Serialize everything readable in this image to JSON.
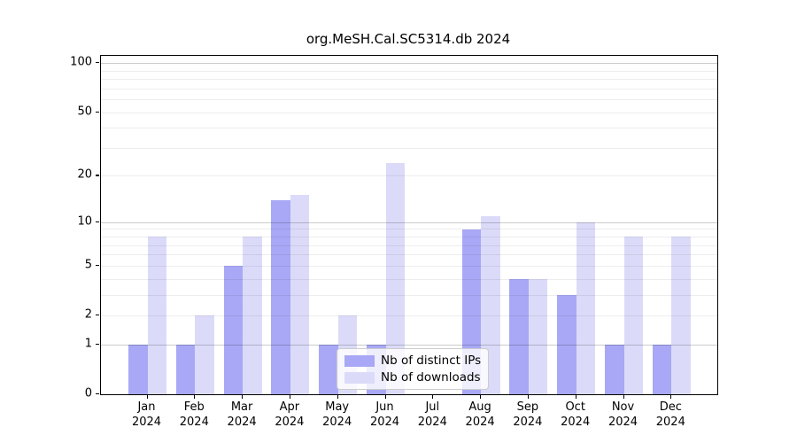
{
  "chart_data": {
    "type": "bar",
    "title": "org.MeSH.Cal.SC5314.db 2024",
    "categories": [
      "Jan",
      "Feb",
      "Mar",
      "Apr",
      "May",
      "Jun",
      "Jul",
      "Aug",
      "Sep",
      "Oct",
      "Nov",
      "Dec"
    ],
    "category_year": "2024",
    "series": [
      {
        "name": "Nb of distinct IPs",
        "color": "#a8a8f6",
        "values": [
          1,
          1,
          5,
          14,
          1,
          1,
          0,
          9,
          4,
          3,
          1,
          1
        ]
      },
      {
        "name": "Nb of downloads",
        "color": "#dbdbf9",
        "values": [
          8,
          2,
          8,
          15,
          2,
          24,
          0,
          11,
          4,
          10,
          8,
          8
        ]
      }
    ],
    "y_scale": "log1p",
    "y_ticks": [
      0,
      1,
      2,
      5,
      10,
      20,
      50,
      100
    ],
    "y_gridlines_major": [
      1,
      10,
      100
    ],
    "y_gridlines_minor": [
      2,
      3,
      4,
      5,
      6,
      7,
      8,
      9,
      20,
      30,
      40,
      50,
      60,
      70,
      80,
      90
    ],
    "ylim": [
      0,
      110
    ],
    "xlabel": "",
    "ylabel": "",
    "grid": true,
    "legend_position": "lower center"
  }
}
